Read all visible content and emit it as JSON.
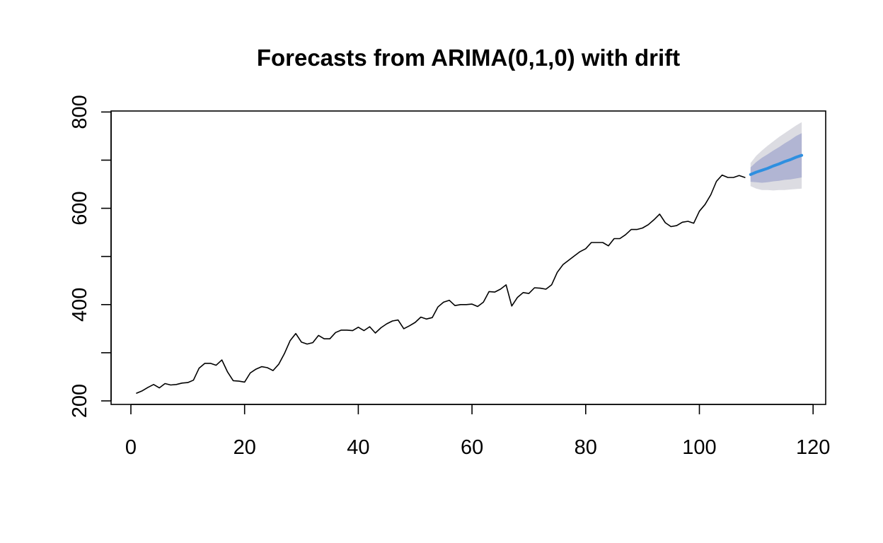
{
  "chart_data": {
    "type": "line",
    "title": "Forecasts from ARIMA(0,1,0) with drift",
    "xlabel": "",
    "ylabel": "",
    "xlim": [
      -5,
      122
    ],
    "ylim": [
      196,
      800
    ],
    "x_ticks": [
      0,
      20,
      40,
      60,
      80,
      100,
      120
    ],
    "y_ticks": [
      200,
      300,
      400,
      500,
      600,
      700,
      800
    ],
    "x_tick_labels": [
      "0",
      "20",
      "40",
      "60",
      "80",
      "100",
      "120"
    ],
    "y_tick_labels": [
      "200",
      "",
      "400",
      "",
      "600",
      "",
      "800"
    ],
    "grid": false,
    "legend": "none",
    "colors": {
      "series": "#000000",
      "forecast": "#2e8fe0",
      "band80": "#b1b5d3",
      "band95": "#dcdce2",
      "axis": "#000000"
    },
    "series": [
      {
        "role": "observed",
        "x": [
          1,
          2,
          3,
          4,
          5,
          6,
          7,
          8,
          9,
          10,
          11,
          12,
          13,
          14,
          15,
          16,
          17,
          18,
          19,
          20,
          21,
          22,
          23,
          24,
          25,
          26,
          27,
          28,
          29,
          30,
          31,
          32,
          33,
          34,
          35,
          36,
          37,
          38,
          39,
          40,
          41,
          42,
          43,
          44,
          45,
          46,
          47,
          48,
          49,
          50,
          51,
          52,
          53,
          54,
          55,
          56,
          57,
          58,
          59,
          60,
          61,
          62,
          63,
          64,
          65,
          66,
          67,
          68,
          69,
          70,
          71,
          72,
          73,
          74,
          75,
          76,
          77,
          78,
          79,
          80,
          81,
          82,
          83,
          84,
          85,
          86,
          87,
          88,
          89,
          90,
          91,
          92,
          93,
          94,
          95,
          96,
          97,
          98,
          99,
          100,
          101,
          102,
          103,
          104,
          105,
          106,
          107,
          108
        ],
        "values": [
          216,
          221,
          228,
          234,
          227,
          236,
          233,
          234,
          237,
          238,
          243,
          268,
          278,
          278,
          274,
          285,
          260,
          242,
          241,
          239,
          258,
          266,
          271,
          269,
          263,
          276,
          298,
          325,
          340,
          322,
          318,
          321,
          336,
          329,
          329,
          342,
          347,
          347,
          346,
          353,
          346,
          354,
          341,
          352,
          360,
          366,
          368,
          350,
          356,
          363,
          374,
          370,
          373,
          395,
          405,
          409,
          398,
          400,
          400,
          401,
          396,
          405,
          427,
          426,
          432,
          441,
          397,
          415,
          425,
          423,
          435,
          434,
          432,
          441,
          467,
          483,
          492,
          501,
          510,
          516,
          529,
          529,
          529,
          522,
          537,
          537,
          545,
          556,
          556,
          559,
          566,
          576,
          588,
          570,
          562,
          564,
          571,
          573,
          569,
          594,
          608,
          628,
          656,
          669,
          664,
          664,
          668,
          664
        ]
      },
      {
        "role": "forecast",
        "x": [
          109,
          110,
          111,
          112,
          113,
          114,
          115,
          116,
          117,
          118
        ],
        "values": [
          670,
          675,
          679,
          683,
          688,
          692,
          697,
          701,
          706,
          710
        ]
      }
    ],
    "intervals": [
      {
        "level": "95%",
        "x": [
          109,
          110,
          111,
          112,
          113,
          114,
          115,
          116,
          117,
          118
        ],
        "lower": [
          646,
          641,
          638,
          638,
          637,
          638,
          638,
          639,
          640,
          641
        ],
        "upper": [
          694,
          709,
          720,
          730,
          739,
          748,
          756,
          764,
          772,
          779
        ]
      },
      {
        "level": "80%",
        "x": [
          109,
          110,
          111,
          112,
          113,
          114,
          115,
          116,
          117,
          118
        ],
        "lower": [
          655,
          654,
          653,
          654,
          656,
          657,
          659,
          660,
          662,
          664
        ],
        "upper": [
          685,
          696,
          705,
          712,
          720,
          727,
          735,
          742,
          750,
          756
        ]
      }
    ]
  }
}
